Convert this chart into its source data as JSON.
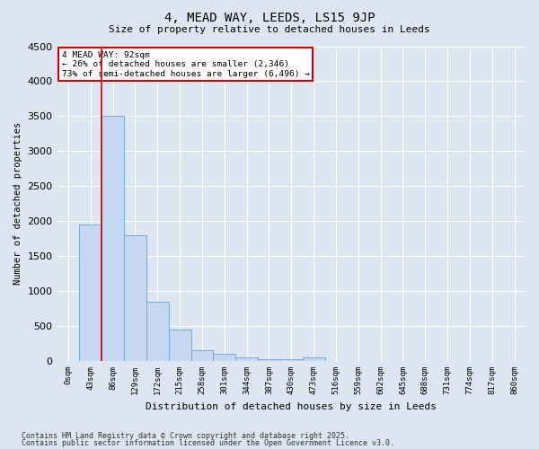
{
  "title": "4, MEAD WAY, LEEDS, LS15 9JP",
  "subtitle": "Size of property relative to detached houses in Leeds",
  "xlabel": "Distribution of detached houses by size in Leeds",
  "ylabel": "Number of detached properties",
  "footnote1": "Contains HM Land Registry data © Crown copyright and database right 2025.",
  "footnote2": "Contains public sector information licensed under the Open Government Licence v3.0.",
  "annotation_line1": "4 MEAD WAY: 92sqm",
  "annotation_line2": "← 26% of detached houses are smaller (2,346)",
  "annotation_line3": "73% of semi-detached houses are larger (6,496) →",
  "bar_color": "#c5d8ef",
  "bar_edge_color": "#7aaad0",
  "vline_color": "#cc0000",
  "annotation_box_edgecolor": "#cc0000",
  "background_color": "#dde5f0",
  "grid_color": "#ffffff",
  "categories": [
    "0sqm",
    "43sqm",
    "86sqm",
    "129sqm",
    "172sqm",
    "215sqm",
    "258sqm",
    "301sqm",
    "344sqm",
    "387sqm",
    "430sqm",
    "473sqm",
    "516sqm",
    "559sqm",
    "602sqm",
    "645sqm",
    "688sqm",
    "731sqm",
    "774sqm",
    "817sqm",
    "860sqm"
  ],
  "values": [
    0,
    1950,
    3500,
    1800,
    850,
    450,
    150,
    100,
    50,
    30,
    30,
    50,
    0,
    0,
    0,
    0,
    0,
    0,
    0,
    0,
    0
  ],
  "vline_index": 2,
  "ylim": [
    0,
    4500
  ],
  "yticks": [
    0,
    500,
    1000,
    1500,
    2000,
    2500,
    3000,
    3500,
    4000,
    4500
  ]
}
